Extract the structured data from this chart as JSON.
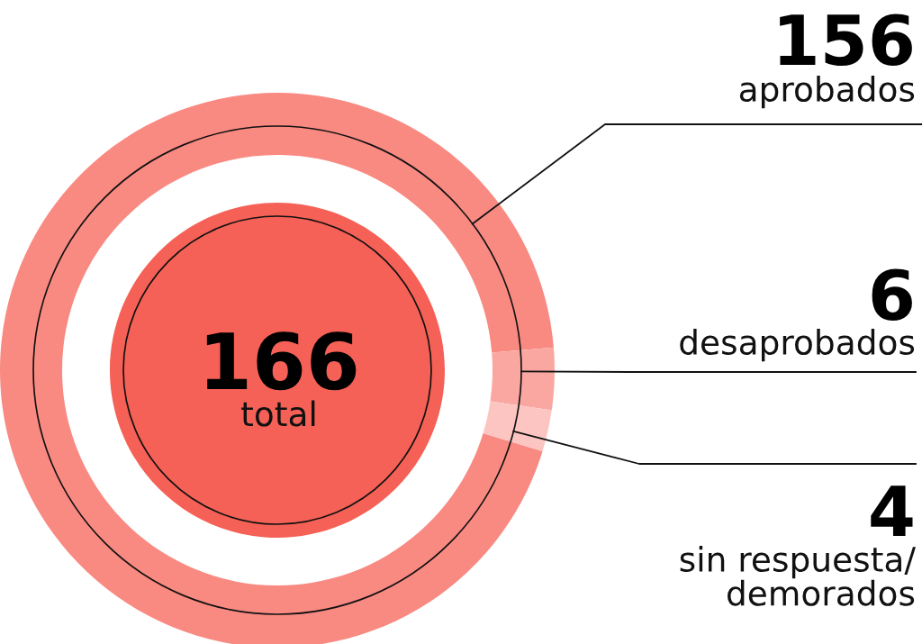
{
  "chart_data": {
    "type": "donut",
    "categories": [
      "aprobados",
      "desaprobados",
      "sin respuesta/\ndemorados"
    ],
    "values": [
      156,
      6,
      4
    ],
    "colors": [
      "#f98a82",
      "#faa7a1",
      "#fcc5c1"
    ],
    "data_labels": true,
    "annotations": [
      "166",
      "total"
    ]
  }
}
